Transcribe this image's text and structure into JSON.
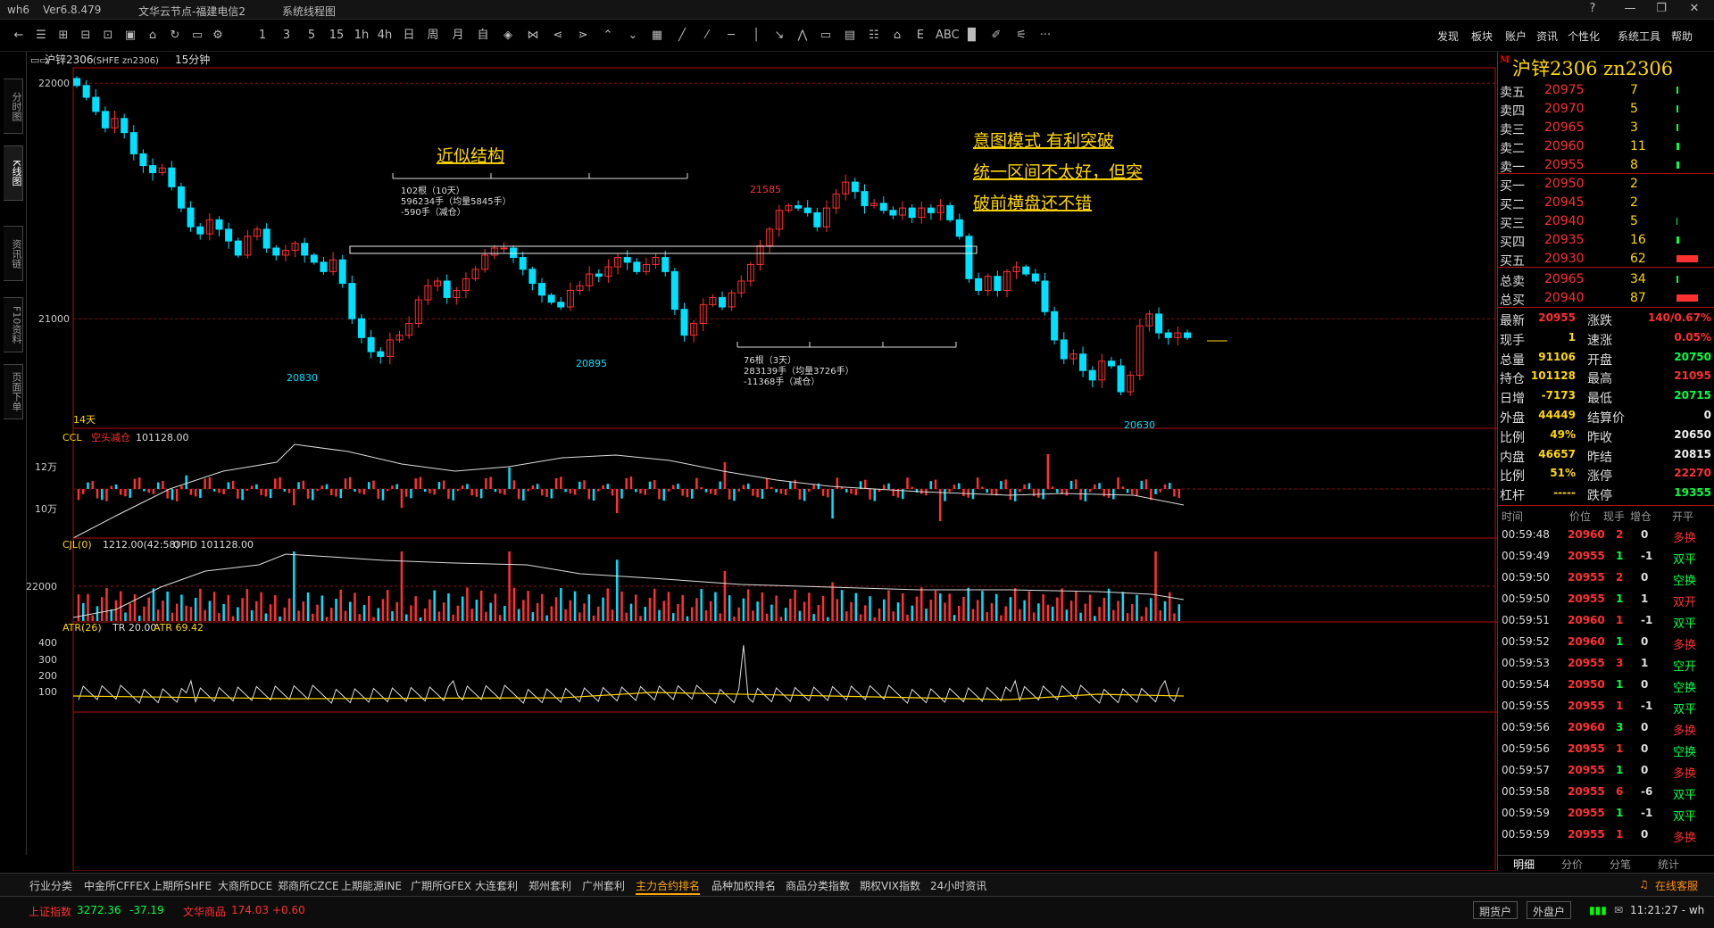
{
  "app": {
    "title": "wh6",
    "version": "Ver6.8.479",
    "server": "文华云节点-福建电信2",
    "menu": "系统线程图"
  },
  "window_controls": {
    "help": "?",
    "min": "—",
    "max": "❐",
    "close": "✕"
  },
  "toolbar": {
    "buttons": [
      "←",
      "☰",
      "⊞",
      "⊟",
      "⊡",
      "▣",
      "⌂",
      "↻",
      "▭",
      "⚙",
      "1",
      "3",
      "5",
      "15",
      "1h",
      "4h",
      "日",
      "周",
      "月",
      "自",
      "◈",
      "⋈",
      "⋖",
      "⋗",
      "⌃",
      "⌄",
      "▦",
      "╱",
      "⁄",
      "─",
      "│",
      "↘",
      "⋀",
      "▭",
      "▤",
      "☷",
      "⌂",
      "E",
      "ABC",
      "▉",
      "✐",
      "⚟",
      "···"
    ],
    "menu": [
      "发现",
      "板块",
      "账户",
      "资讯",
      "个性化",
      "系统工具",
      "帮助"
    ]
  },
  "left_tabs": [
    "分时图",
    "K线图",
    "资讯链",
    "F10资料",
    "页面下单"
  ],
  "chart": {
    "symbol_header": "沪锌2306",
    "symbol_code": "(SHFE zn2306)",
    "period": "15分钟",
    "price_axis": [
      "22000",
      "21000"
    ],
    "day_label": "14天",
    "annotations": {
      "title1": "近似结构",
      "box1_line1": "102根（10天）",
      "box1_line2": "596234手（均量5845手）",
      "box1_line3": "-590手（减仓）",
      "box2_line1": "76根（3天）",
      "box2_line2": "283139手（均量3726手）",
      "box2_line3": "-11368手（减仓）",
      "note1": "意图模式 有利突破",
      "note2": "统一区间不太好，但突",
      "note3": "破前横盘还不错",
      "low1": "20830",
      "low2": "20895",
      "high1": "21585",
      "low3": "20630"
    },
    "ccl": {
      "name": "CCL",
      "sub": "空头减仓",
      "value": "101128.00",
      "axis": [
        "12万",
        "10万"
      ]
    },
    "cjl": {
      "name": "CJL(0)",
      "value": "1212.00(42:58)",
      "opid": "OPID 101128.00",
      "axis": [
        "22000"
      ]
    },
    "atr": {
      "name": "ATR(26)",
      "tr": "TR 20.00",
      "atr": "ATR 69.42",
      "axis": [
        "400",
        "300",
        "200",
        "100"
      ]
    }
  },
  "chart_data": {
    "type": "candlestick",
    "period": "15分钟",
    "ylim": [
      20550,
      22050
    ],
    "close_series": [
      21990,
      21940,
      21880,
      21810,
      21850,
      21790,
      21700,
      21650,
      21620,
      21640,
      21560,
      21470,
      21390,
      21360,
      21420,
      21380,
      21330,
      21270,
      21350,
      21380,
      21300,
      21270,
      21290,
      21320,
      21270,
      21240,
      21200,
      21250,
      21150,
      21000,
      20920,
      20860,
      20840,
      20910,
      20930,
      20980,
      21080,
      21140,
      21160,
      21090,
      21120,
      21170,
      21210,
      21270,
      21300,
      21300,
      21260,
      21210,
      21150,
      21100,
      21070,
      21050,
      21120,
      21140,
      21190,
      21180,
      21220,
      21260,
      21240,
      21200,
      21230,
      21260,
      21200,
      21040,
      20930,
      20980,
      21060,
      21090,
      21050,
      21110,
      21160,
      21230,
      21310,
      21380,
      21460,
      21480,
      21470,
      21450,
      21390,
      21470,
      21530,
      21580,
      21540,
      21480,
      21490,
      21460,
      21440,
      21470,
      21430,
      21470,
      21450,
      21480,
      21420,
      21350,
      21170,
      21120,
      21180,
      21120,
      21200,
      21220,
      21190,
      21160,
      21030,
      20910,
      20830,
      20850,
      20780,
      20740,
      20820,
      20800,
      20690,
      20760,
      20970,
      21020,
      20940,
      20920,
      20940,
      20920
    ]
  },
  "quote": {
    "title": "沪锌2306  zn2306",
    "asks": [
      {
        "label": "卖五",
        "price": "20975",
        "vol": "7"
      },
      {
        "label": "卖四",
        "price": "20970",
        "vol": "5"
      },
      {
        "label": "卖三",
        "price": "20965",
        "vol": "3"
      },
      {
        "label": "卖二",
        "price": "20960",
        "vol": "11"
      },
      {
        "label": "卖一",
        "price": "20955",
        "vol": "8"
      }
    ],
    "bids": [
      {
        "label": "买一",
        "price": "20950",
        "vol": "2"
      },
      {
        "label": "买二",
        "price": "20945",
        "vol": "2"
      },
      {
        "label": "买三",
        "price": "20940",
        "vol": "5"
      },
      {
        "label": "买四",
        "price": "20935",
        "vol": "16"
      },
      {
        "label": "买五",
        "price": "20930",
        "vol": "62"
      }
    ],
    "totals": [
      {
        "label": "总卖",
        "price": "20965",
        "vol": "34"
      },
      {
        "label": "总买",
        "price": "20940",
        "vol": "87"
      }
    ],
    "stats": [
      {
        "l1": "最新",
        "v1": "20955",
        "l2": "涨跌",
        "v2": "140/0.67%"
      },
      {
        "l1": "现手",
        "v1": "1",
        "l2": "速涨",
        "v2": "0.05%"
      },
      {
        "l1": "总量",
        "v1": "91106",
        "l2": "开盘",
        "v2": "20750"
      },
      {
        "l1": "持仓",
        "v1": "101128",
        "l2": "最高",
        "v2": "21095"
      },
      {
        "l1": "日增",
        "v1": "-7173",
        "l2": "最低",
        "v2": "20715"
      },
      {
        "l1": "外盘",
        "v1": "44449",
        "l2": "结算价",
        "v2": "0"
      },
      {
        "l1": "比例",
        "v1": "49%",
        "l2": "昨收",
        "v2": "20650"
      },
      {
        "l1": "内盘",
        "v1": "46657",
        "l2": "昨结",
        "v2": "20815"
      },
      {
        "l1": "比例",
        "v1": "51%",
        "l2": "涨停",
        "v2": "22270"
      },
      {
        "l1": "杠杆",
        "v1": "-----",
        "l2": "跌停",
        "v2": "19355"
      }
    ],
    "ticks_header": {
      "time": "时间",
      "price": "价位",
      "vol": "现手",
      "oi": "增仓",
      "type": "开平"
    },
    "ticks": [
      {
        "t": "00:59:48",
        "p": "20960",
        "v": "2",
        "o": "0",
        "k": "多换"
      },
      {
        "t": "00:59:49",
        "p": "20955",
        "v": "1",
        "o": "-1",
        "k": "双平"
      },
      {
        "t": "00:59:50",
        "p": "20955",
        "v": "2",
        "o": "0",
        "k": "空换"
      },
      {
        "t": "00:59:50",
        "p": "20955",
        "v": "1",
        "o": "1",
        "k": "双开"
      },
      {
        "t": "00:59:51",
        "p": "20960",
        "v": "1",
        "o": "-1",
        "k": "双平"
      },
      {
        "t": "00:59:52",
        "p": "20960",
        "v": "1",
        "o": "0",
        "k": "多换"
      },
      {
        "t": "00:59:53",
        "p": "20955",
        "v": "3",
        "o": "1",
        "k": "空开"
      },
      {
        "t": "00:59:54",
        "p": "20950",
        "v": "1",
        "o": "0",
        "k": "空换"
      },
      {
        "t": "00:59:55",
        "p": "20955",
        "v": "1",
        "o": "-1",
        "k": "双平"
      },
      {
        "t": "00:59:56",
        "p": "20960",
        "v": "3",
        "o": "0",
        "k": "多换"
      },
      {
        "t": "00:59:56",
        "p": "20955",
        "v": "1",
        "o": "0",
        "k": "空换"
      },
      {
        "t": "00:59:57",
        "p": "20955",
        "v": "1",
        "o": "0",
        "k": "多换"
      },
      {
        "t": "00:59:58",
        "p": "20955",
        "v": "6",
        "o": "-6",
        "k": "双平"
      },
      {
        "t": "00:59:59",
        "p": "20955",
        "v": "1",
        "o": "-1",
        "k": "双平"
      },
      {
        "t": "00:59:59",
        "p": "20955",
        "v": "1",
        "o": "0",
        "k": "多换"
      }
    ],
    "tabs": [
      "明细",
      "分价",
      "分笔",
      "统计"
    ]
  },
  "bottom_tabs": [
    "行业分类",
    "中金所CFFEX",
    "上期所SHFE",
    "大商所DCE",
    "郑商所CZCE",
    "上期能源INE",
    "广期所GFEX",
    "大连套利",
    "郑州套利",
    "广州套利",
    "主力合约排名",
    "品种加权排名",
    "商品分类指数",
    "期权VIX指数",
    "24小时资讯"
  ],
  "online_service": "在线客服",
  "status": {
    "idx1_name": "上证指数",
    "idx1_val": "3272.36",
    "idx1_chg": "-37.19",
    "idx2_name": "文华商品",
    "idx2_val": "174.03",
    "idx2_chg": "+0.60",
    "btn1": "期货户",
    "btn2": "外盘户",
    "clock": "11:21:27 - wh"
  },
  "colors": {
    "up": "#ff3030",
    "down": "#00e0ff",
    "accent": "#ffd700"
  }
}
